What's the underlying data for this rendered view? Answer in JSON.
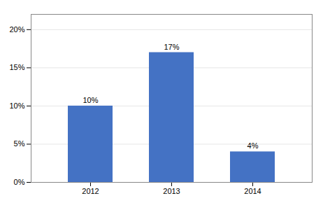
{
  "chart_data": {
    "type": "bar",
    "categories": [
      "2012",
      "2013",
      "2014"
    ],
    "values": [
      10,
      17,
      4
    ],
    "value_labels": [
      "10%",
      "17%",
      "4%"
    ],
    "data_labels": true,
    "color": "#4472C4",
    "ylim": [
      0,
      22
    ],
    "yticks": [
      {
        "value": 0,
        "label": "0%"
      },
      {
        "value": 5,
        "label": "5%"
      },
      {
        "value": 10,
        "label": "10%"
      },
      {
        "value": 15,
        "label": "15%"
      },
      {
        "value": 20,
        "label": "20%"
      }
    ],
    "grid": true
  }
}
